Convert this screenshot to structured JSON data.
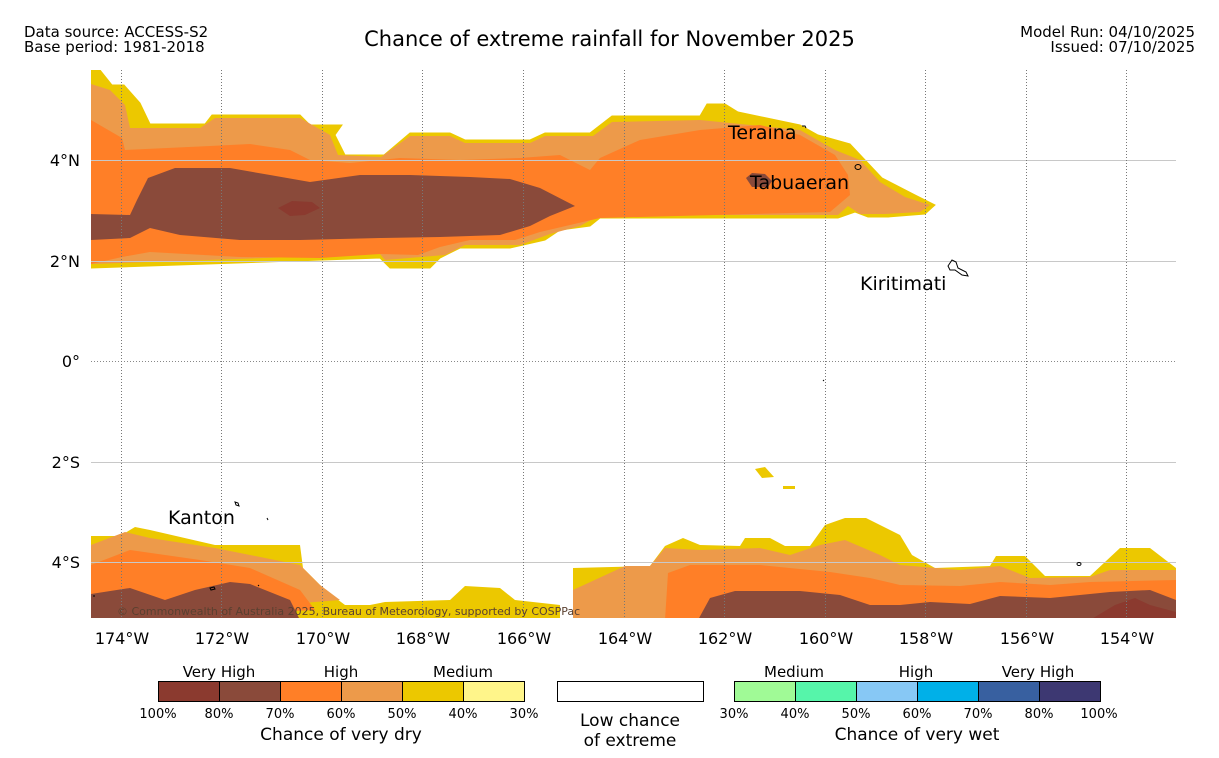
{
  "header": {
    "data_source": "Data source: ACCESS-S2",
    "base_period": "Base period: 1981-2018",
    "title": "Chance of extreme rainfall for November 2025",
    "model_run": "Model Run: 04/10/2025",
    "issued": "Issued: 07/10/2025"
  },
  "map": {
    "lat_labels": [
      "4°N",
      "2°N",
      "0°",
      "2°S",
      "4°S"
    ],
    "lon_labels": [
      "174°W",
      "172°W",
      "170°W",
      "168°W",
      "166°W",
      "164°W",
      "162°W",
      "160°W",
      "158°W",
      "156°W",
      "154°W"
    ],
    "places": {
      "teraina": "Teraina",
      "tabuaeran": "Tabuaeran",
      "kiritimati": "Kiritimati",
      "kanton": "Kanton"
    },
    "copyright": "© Commonwealth of Australia 2025, Bureau of Meteorology, supported by COSPPac"
  },
  "legend": {
    "dry": {
      "heads": [
        "Very High",
        "High",
        "Medium"
      ],
      "ticks": [
        "100%",
        "80%",
        "70%",
        "60%",
        "50%",
        "40%",
        "30%"
      ],
      "title": "Chance of very dry",
      "colors": [
        "#8b3a2f",
        "#8a4a3a",
        "#ff7f27",
        "#ed9a4a",
        "#ecc800",
        "#fff58a"
      ]
    },
    "low": {
      "line1": "Low chance",
      "line2": "of extreme"
    },
    "wet": {
      "heads": [
        "Medium",
        "High",
        "Very High"
      ],
      "ticks": [
        "30%",
        "40%",
        "50%",
        "60%",
        "70%",
        "80%",
        "100%"
      ],
      "title": "Chance of very wet",
      "colors": [
        "#a0fa96",
        "#56f5aa",
        "#87c8f5",
        "#00b0e8",
        "#3860a0",
        "#3d3872"
      ]
    }
  }
}
